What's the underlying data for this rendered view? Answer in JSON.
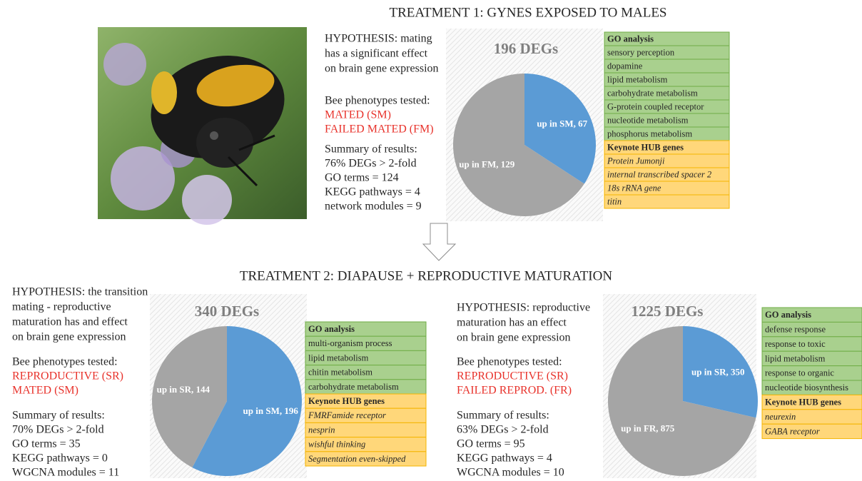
{
  "headings": [
    "TREATMENT 1: GYNES EXPOSED TO MALES",
    "TREATMENT 2: DIAPAUSE + REPRODUCTIVE MATURATION"
  ],
  "panels": [
    {
      "hypothesis": [
        "HYPOTHESIS: mating",
        "has a significant effect",
        "on brain gene expression"
      ],
      "phenotypes_label": "Bee phenotypes tested:",
      "phenotypes": [
        "MATED (SM)",
        "FAILED MATED (FM)"
      ],
      "summary": [
        "Summary of results:",
        "76% DEGs > 2-fold",
        "GO terms = 124",
        "KEGG pathways = 4",
        "network modules = 9"
      ],
      "go_header": "GO analysis",
      "go_terms": [
        "sensory perception",
        "dopamine",
        "lipid metabolism",
        "carbohydrate metabolism",
        "G-protein coupled receptor",
        "nucleotide metabolism",
        "phosphorus metabolism"
      ],
      "hub_header": "Keynote HUB genes",
      "hub_genes": [
        "Protein Jumonji",
        "internal transcribed spacer 2",
        "18s rRNA gene",
        "titin"
      ]
    },
    {
      "hypothesis": [
        "HYPOTHESIS: the transition",
        "mating - reproductive",
        "maturation has and effect",
        "on brain gene expression"
      ],
      "phenotypes_label": "Bee phenotypes tested:",
      "phenotypes": [
        "REPRODUCTIVE (SR)",
        "MATED (SM)"
      ],
      "summary": [
        "Summary of results:",
        "70% DEGs > 2-fold",
        "GO terms = 35",
        "KEGG pathways = 0",
        "WGCNA modules = 11"
      ],
      "go_header": "GO analysis",
      "go_terms": [
        "multi-organism process",
        "lipid metabolism",
        "chitin metabolism",
        "carbohydrate metabolism"
      ],
      "hub_header": "Keynote HUB genes",
      "hub_genes": [
        "FMRFamide receptor",
        "nesprin",
        "wishful thinking",
        "Segmentation even-skipped"
      ]
    },
    {
      "hypothesis": [
        "HYPOTHESIS: reproductive",
        "maturation has an effect",
        "on brain gene expression"
      ],
      "phenotypes_label": "Bee phenotypes tested:",
      "phenotypes": [
        "REPRODUCTIVE (SR)",
        "FAILED REPROD. (FR)"
      ],
      "summary": [
        "Summary of results:",
        "63% DEGs > 2-fold",
        "GO terms = 95",
        "KEGG pathways = 4",
        "WGCNA modules = 10"
      ],
      "go_header": "GO analysis",
      "go_terms": [
        "defense response",
        "response to toxic",
        "lipid metabolism",
        "response to organic",
        "nucleotide biosynthesis"
      ],
      "hub_header": "Keynote HUB genes",
      "hub_genes": [
        "neurexin",
        "GABA receptor"
      ]
    }
  ],
  "chart_data": [
    {
      "type": "pie",
      "title": "196 DEGs",
      "values": [
        67,
        129
      ],
      "value_labels": [
        "up in SM, 67",
        "up in FM, 129"
      ],
      "colors": [
        "#5b9bd5",
        "#a5a5a5"
      ]
    },
    {
      "type": "pie",
      "title": "340 DEGs",
      "values": [
        196,
        144
      ],
      "value_labels": [
        "up in SM, 196",
        "up in SR, 144"
      ],
      "colors": [
        "#5b9bd5",
        "#a5a5a5"
      ]
    },
    {
      "type": "pie",
      "title": "1225 DEGs",
      "values": [
        350,
        875
      ],
      "value_labels": [
        "up in SR, 350",
        "up in FR, 875"
      ],
      "colors": [
        "#5b9bd5",
        "#a5a5a5"
      ]
    }
  ]
}
